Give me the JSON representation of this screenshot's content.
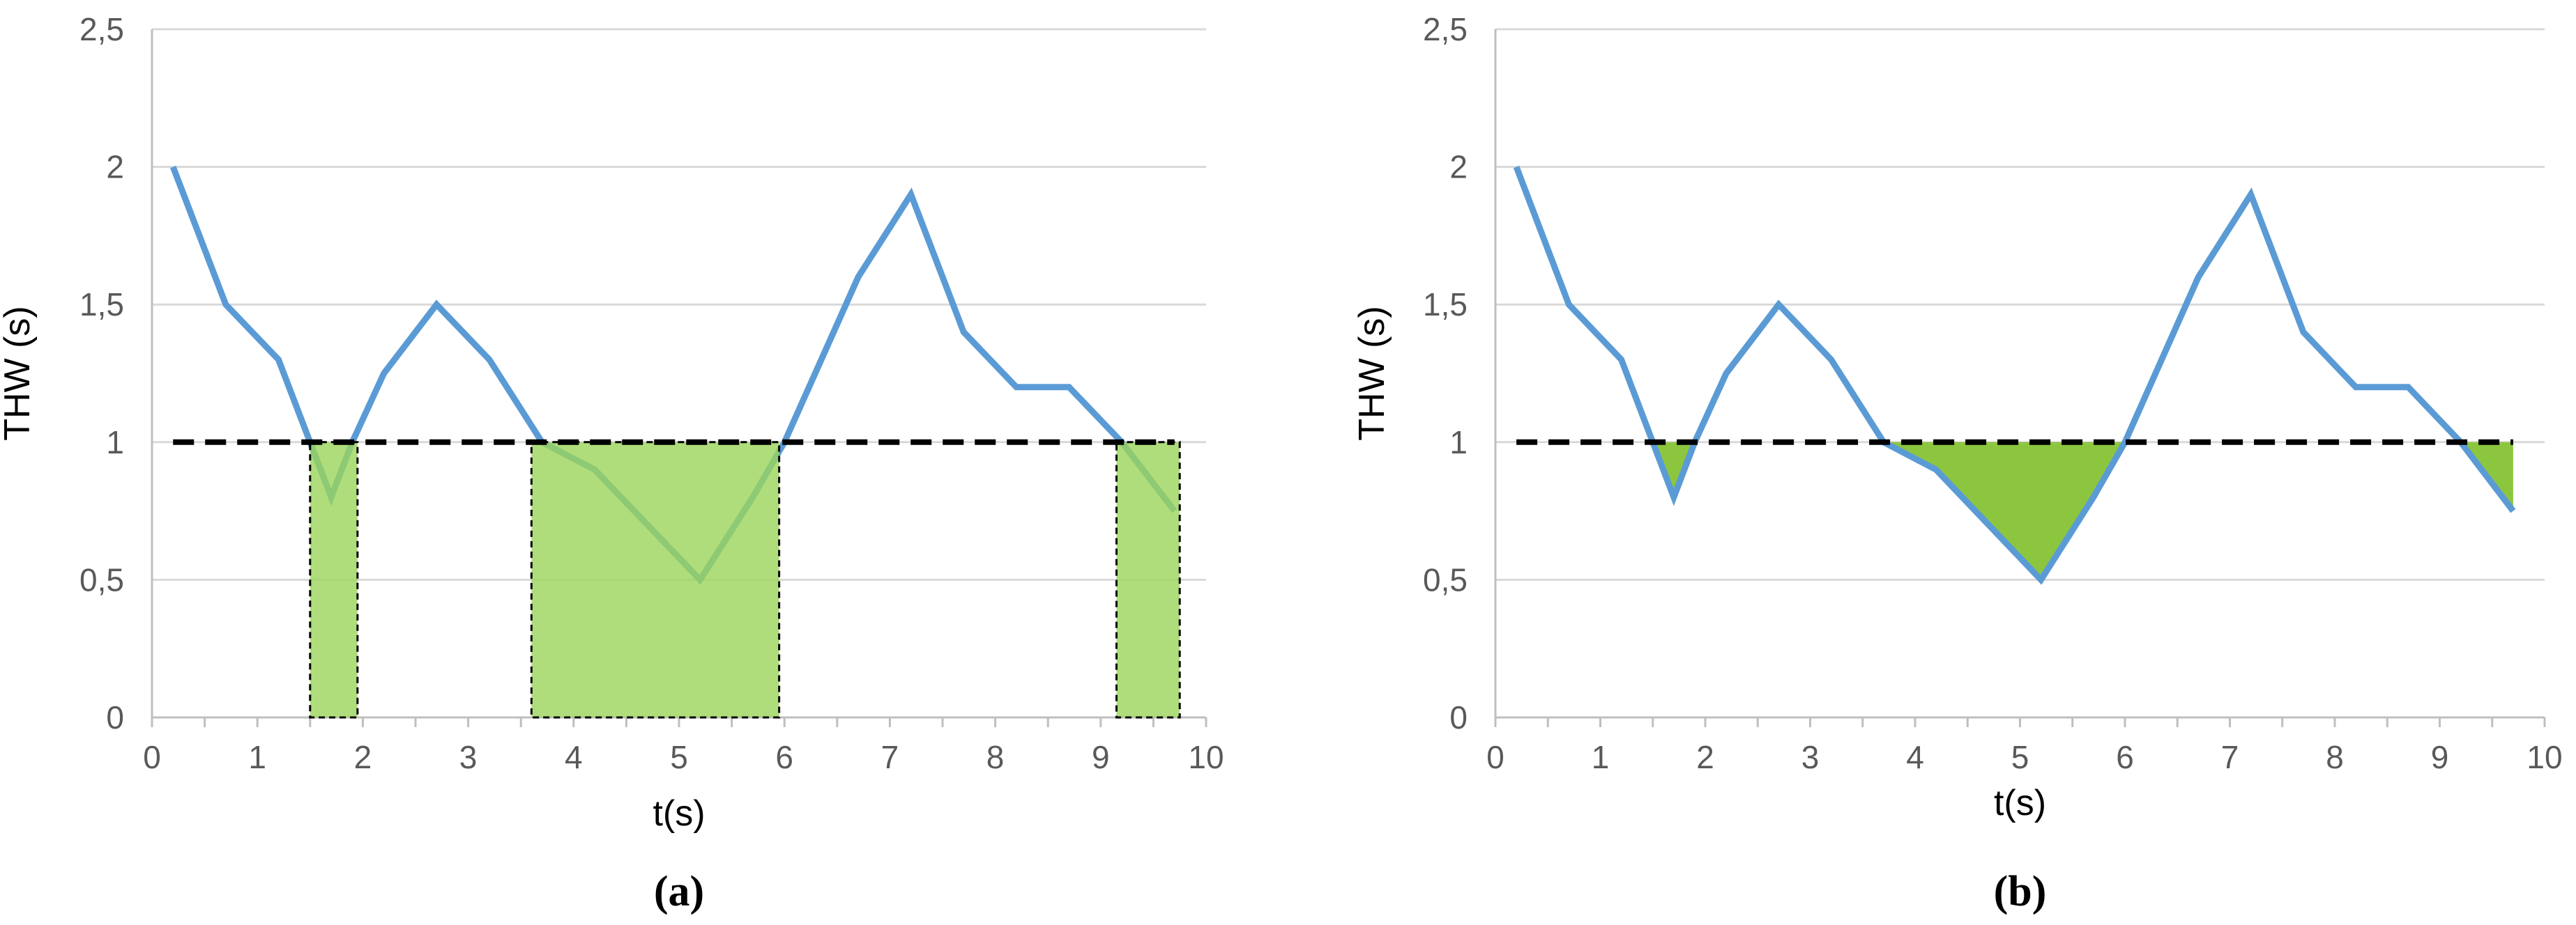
{
  "colors": {
    "line": "#5b9bd5",
    "threshold": "#000000",
    "fill_a": "#9bd55a",
    "fill_b": "#8cc63f",
    "grid": "#d9d9d9",
    "axis": "#bfbfbf",
    "tick_text": "#595959"
  },
  "chart_data": [
    {
      "type": "line",
      "panel_label": "(a)",
      "xlabel": "t(s)",
      "ylabel": "THW (s)",
      "xlim": [
        0,
        10
      ],
      "ylim": [
        0,
        2.5
      ],
      "x_ticks": [
        "0",
        "1",
        "2",
        "3",
        "4",
        "5",
        "6",
        "7",
        "8",
        "9",
        "10"
      ],
      "y_ticks": [
        "0",
        "0,5",
        "1",
        "1,5",
        "2",
        "2,5"
      ],
      "grid": "horizontal",
      "series": [
        {
          "x": [
            0.2,
            0.7,
            1.2,
            1.5,
            1.7,
            1.9,
            2.2,
            2.7,
            3.2,
            3.7,
            4.2,
            4.7,
            5.2,
            5.7,
            6.0,
            6.7,
            7.2,
            7.7,
            8.2,
            8.7,
            9.2,
            9.7
          ],
          "y": [
            2.0,
            1.5,
            1.3,
            1.0,
            0.8,
            1.0,
            1.25,
            1.5,
            1.3,
            1.0,
            0.9,
            0.7,
            0.5,
            0.8,
            1.0,
            1.6,
            1.9,
            1.4,
            1.2,
            1.2,
            1.0,
            0.75
          ]
        }
      ],
      "threshold": 1.0,
      "highlight": "rectangles",
      "highlight_ranges": [
        [
          1.5,
          1.95
        ],
        [
          3.6,
          5.95
        ],
        [
          9.15,
          9.75
        ]
      ]
    },
    {
      "type": "line",
      "panel_label": "(b)",
      "xlabel": "t(s)",
      "ylabel": "THW (s)",
      "xlim": [
        0,
        10
      ],
      "ylim": [
        0,
        2.5
      ],
      "x_ticks": [
        "0",
        "1",
        "2",
        "3",
        "4",
        "5",
        "6",
        "7",
        "8",
        "9",
        "10"
      ],
      "y_ticks": [
        "0",
        "0,5",
        "1",
        "1,5",
        "2",
        "2,5"
      ],
      "grid": "horizontal",
      "series": [
        {
          "x": [
            0.2,
            0.7,
            1.2,
            1.5,
            1.7,
            1.9,
            2.2,
            2.7,
            3.2,
            3.7,
            4.2,
            4.7,
            5.2,
            5.7,
            6.0,
            6.7,
            7.2,
            7.7,
            8.2,
            8.7,
            9.2,
            9.7
          ],
          "y": [
            2.0,
            1.5,
            1.3,
            1.0,
            0.8,
            1.0,
            1.25,
            1.5,
            1.3,
            1.0,
            0.9,
            0.7,
            0.5,
            0.8,
            1.0,
            1.6,
            1.9,
            1.4,
            1.2,
            1.2,
            1.0,
            0.75
          ]
        }
      ],
      "threshold": 1.0,
      "highlight": "area-below-threshold"
    }
  ]
}
